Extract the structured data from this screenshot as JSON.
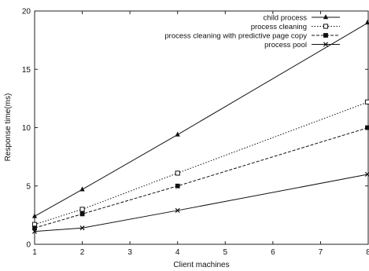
{
  "chart_data": {
    "type": "line",
    "xlabel": "Client machines",
    "ylabel": "Response time(ms)",
    "xlim": [
      1,
      8
    ],
    "ylim": [
      0,
      20
    ],
    "xticks": [
      "1",
      "2",
      "3",
      "4",
      "5",
      "6",
      "7",
      "8"
    ],
    "yticks": [
      "0",
      "5",
      "10",
      "15",
      "20"
    ],
    "grid": false,
    "legend_position": "top-right",
    "series": [
      {
        "name": "child process",
        "marker": "triangle",
        "dash": "solid",
        "x": [
          1,
          2,
          4,
          8
        ],
        "y": [
          2.4,
          4.7,
          9.4,
          19.0
        ]
      },
      {
        "name": "process cleaning",
        "marker": "open-square",
        "dash": "dotted",
        "x": [
          1,
          2,
          4,
          8
        ],
        "y": [
          1.7,
          3.0,
          6.1,
          12.2
        ]
      },
      {
        "name": "process cleaning with predictive page copy",
        "marker": "filled-square",
        "dash": "dashed",
        "x": [
          1,
          2,
          4,
          8
        ],
        "y": [
          1.4,
          2.6,
          5.0,
          10.0
        ]
      },
      {
        "name": "process pool",
        "marker": "x",
        "dash": "solid",
        "x": [
          1,
          2,
          4,
          8
        ],
        "y": [
          1.1,
          1.4,
          2.9,
          6.0
        ]
      }
    ]
  }
}
